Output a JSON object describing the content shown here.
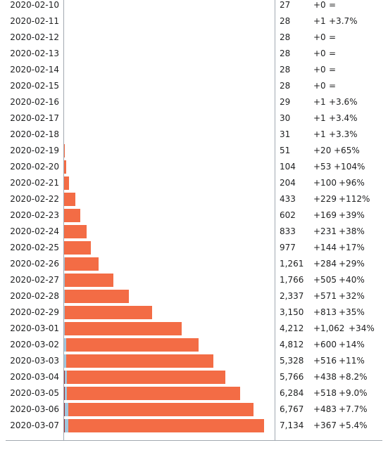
{
  "chart_data": {
    "type": "bar",
    "series": [
      {
        "values": [
          27,
          28,
          28,
          28,
          28,
          28,
          29,
          30,
          31,
          51,
          104,
          204,
          433,
          602,
          833,
          977,
          1261,
          1766,
          2337,
          3150,
          4212,
          4812,
          5328,
          5766,
          6284,
          6767,
          7134
        ]
      }
    ],
    "categories": [
      "2020-02-10",
      "2020-02-11",
      "2020-02-12",
      "2020-02-13",
      "2020-02-14",
      "2020-02-15",
      "2020-02-16",
      "2020-02-17",
      "2020-02-18",
      "2020-02-19",
      "2020-02-20",
      "2020-02-21",
      "2020-02-22",
      "2020-02-23",
      "2020-02-24",
      "2020-02-25",
      "2020-02-26",
      "2020-02-27",
      "2020-02-28",
      "2020-02-29",
      "2020-03-01",
      "2020-03-02",
      "2020-03-03",
      "2020-03-04",
      "2020-03-05",
      "2020-03-06",
      "2020-03-07"
    ],
    "colors": {
      "deaths": "#a82d2d",
      "recovered": "#a1c6dd",
      "active": "#f36c45",
      "axis": "#a2a9b1"
    }
  },
  "rows": [
    {
      "date": "2020-02-10",
      "total": "27",
      "change": "+0",
      "pct": "="
    },
    {
      "date": "2020-02-11",
      "total": "28",
      "change": "+1",
      "pct": "+3.7%"
    },
    {
      "date": "2020-02-12",
      "total": "28",
      "change": "+0",
      "pct": "="
    },
    {
      "date": "2020-02-13",
      "total": "28",
      "change": "+0",
      "pct": "="
    },
    {
      "date": "2020-02-14",
      "total": "28",
      "change": "+0",
      "pct": "="
    },
    {
      "date": "2020-02-15",
      "total": "28",
      "change": "+0",
      "pct": "="
    },
    {
      "date": "2020-02-16",
      "total": "29",
      "change": "+1",
      "pct": "+3.6%"
    },
    {
      "date": "2020-02-17",
      "total": "30",
      "change": "+1",
      "pct": "+3.4%"
    },
    {
      "date": "2020-02-18",
      "total": "31",
      "change": "+1",
      "pct": "+3.3%"
    },
    {
      "date": "2020-02-19",
      "total": "51",
      "change": "+20",
      "pct": "+65%"
    },
    {
      "date": "2020-02-20",
      "total": "104",
      "change": "+53",
      "pct": "+104%"
    },
    {
      "date": "2020-02-21",
      "total": "204",
      "change": "+100",
      "pct": "+96%"
    },
    {
      "date": "2020-02-22",
      "total": "433",
      "change": "+229",
      "pct": "+112%"
    },
    {
      "date": "2020-02-23",
      "total": "602",
      "change": "+169",
      "pct": "+39%"
    },
    {
      "date": "2020-02-24",
      "total": "833",
      "change": "+231",
      "pct": "+38%"
    },
    {
      "date": "2020-02-25",
      "total": "977",
      "change": "+144",
      "pct": "+17%"
    },
    {
      "date": "2020-02-26",
      "total": "1,261",
      "change": "+284",
      "pct": "+29%"
    },
    {
      "date": "2020-02-27",
      "total": "1,766",
      "change": "+505",
      "pct": "+40%"
    },
    {
      "date": "2020-02-28",
      "total": "2,337",
      "change": "+571",
      "pct": "+32%"
    },
    {
      "date": "2020-02-29",
      "total": "3,150",
      "change": "+813",
      "pct": "+35%"
    },
    {
      "date": "2020-03-01",
      "total": "4,212",
      "change": "+1,062",
      "pct": "+34%"
    },
    {
      "date": "2020-03-02",
      "total": "4,812",
      "change": "+600",
      "pct": "+14%"
    },
    {
      "date": "2020-03-03",
      "total": "5,328",
      "change": "+516",
      "pct": "+11%"
    },
    {
      "date": "2020-03-04",
      "total": "5,766",
      "change": "+438",
      "pct": "+8.2%"
    },
    {
      "date": "2020-03-05",
      "total": "6,284",
      "change": "+518",
      "pct": "+9.0%"
    },
    {
      "date": "2020-03-06",
      "total": "6,767",
      "change": "+483",
      "pct": "+7.7%"
    },
    {
      "date": "2020-03-07",
      "total": "7,134",
      "change": "+367",
      "pct": "+5.4%"
    }
  ]
}
